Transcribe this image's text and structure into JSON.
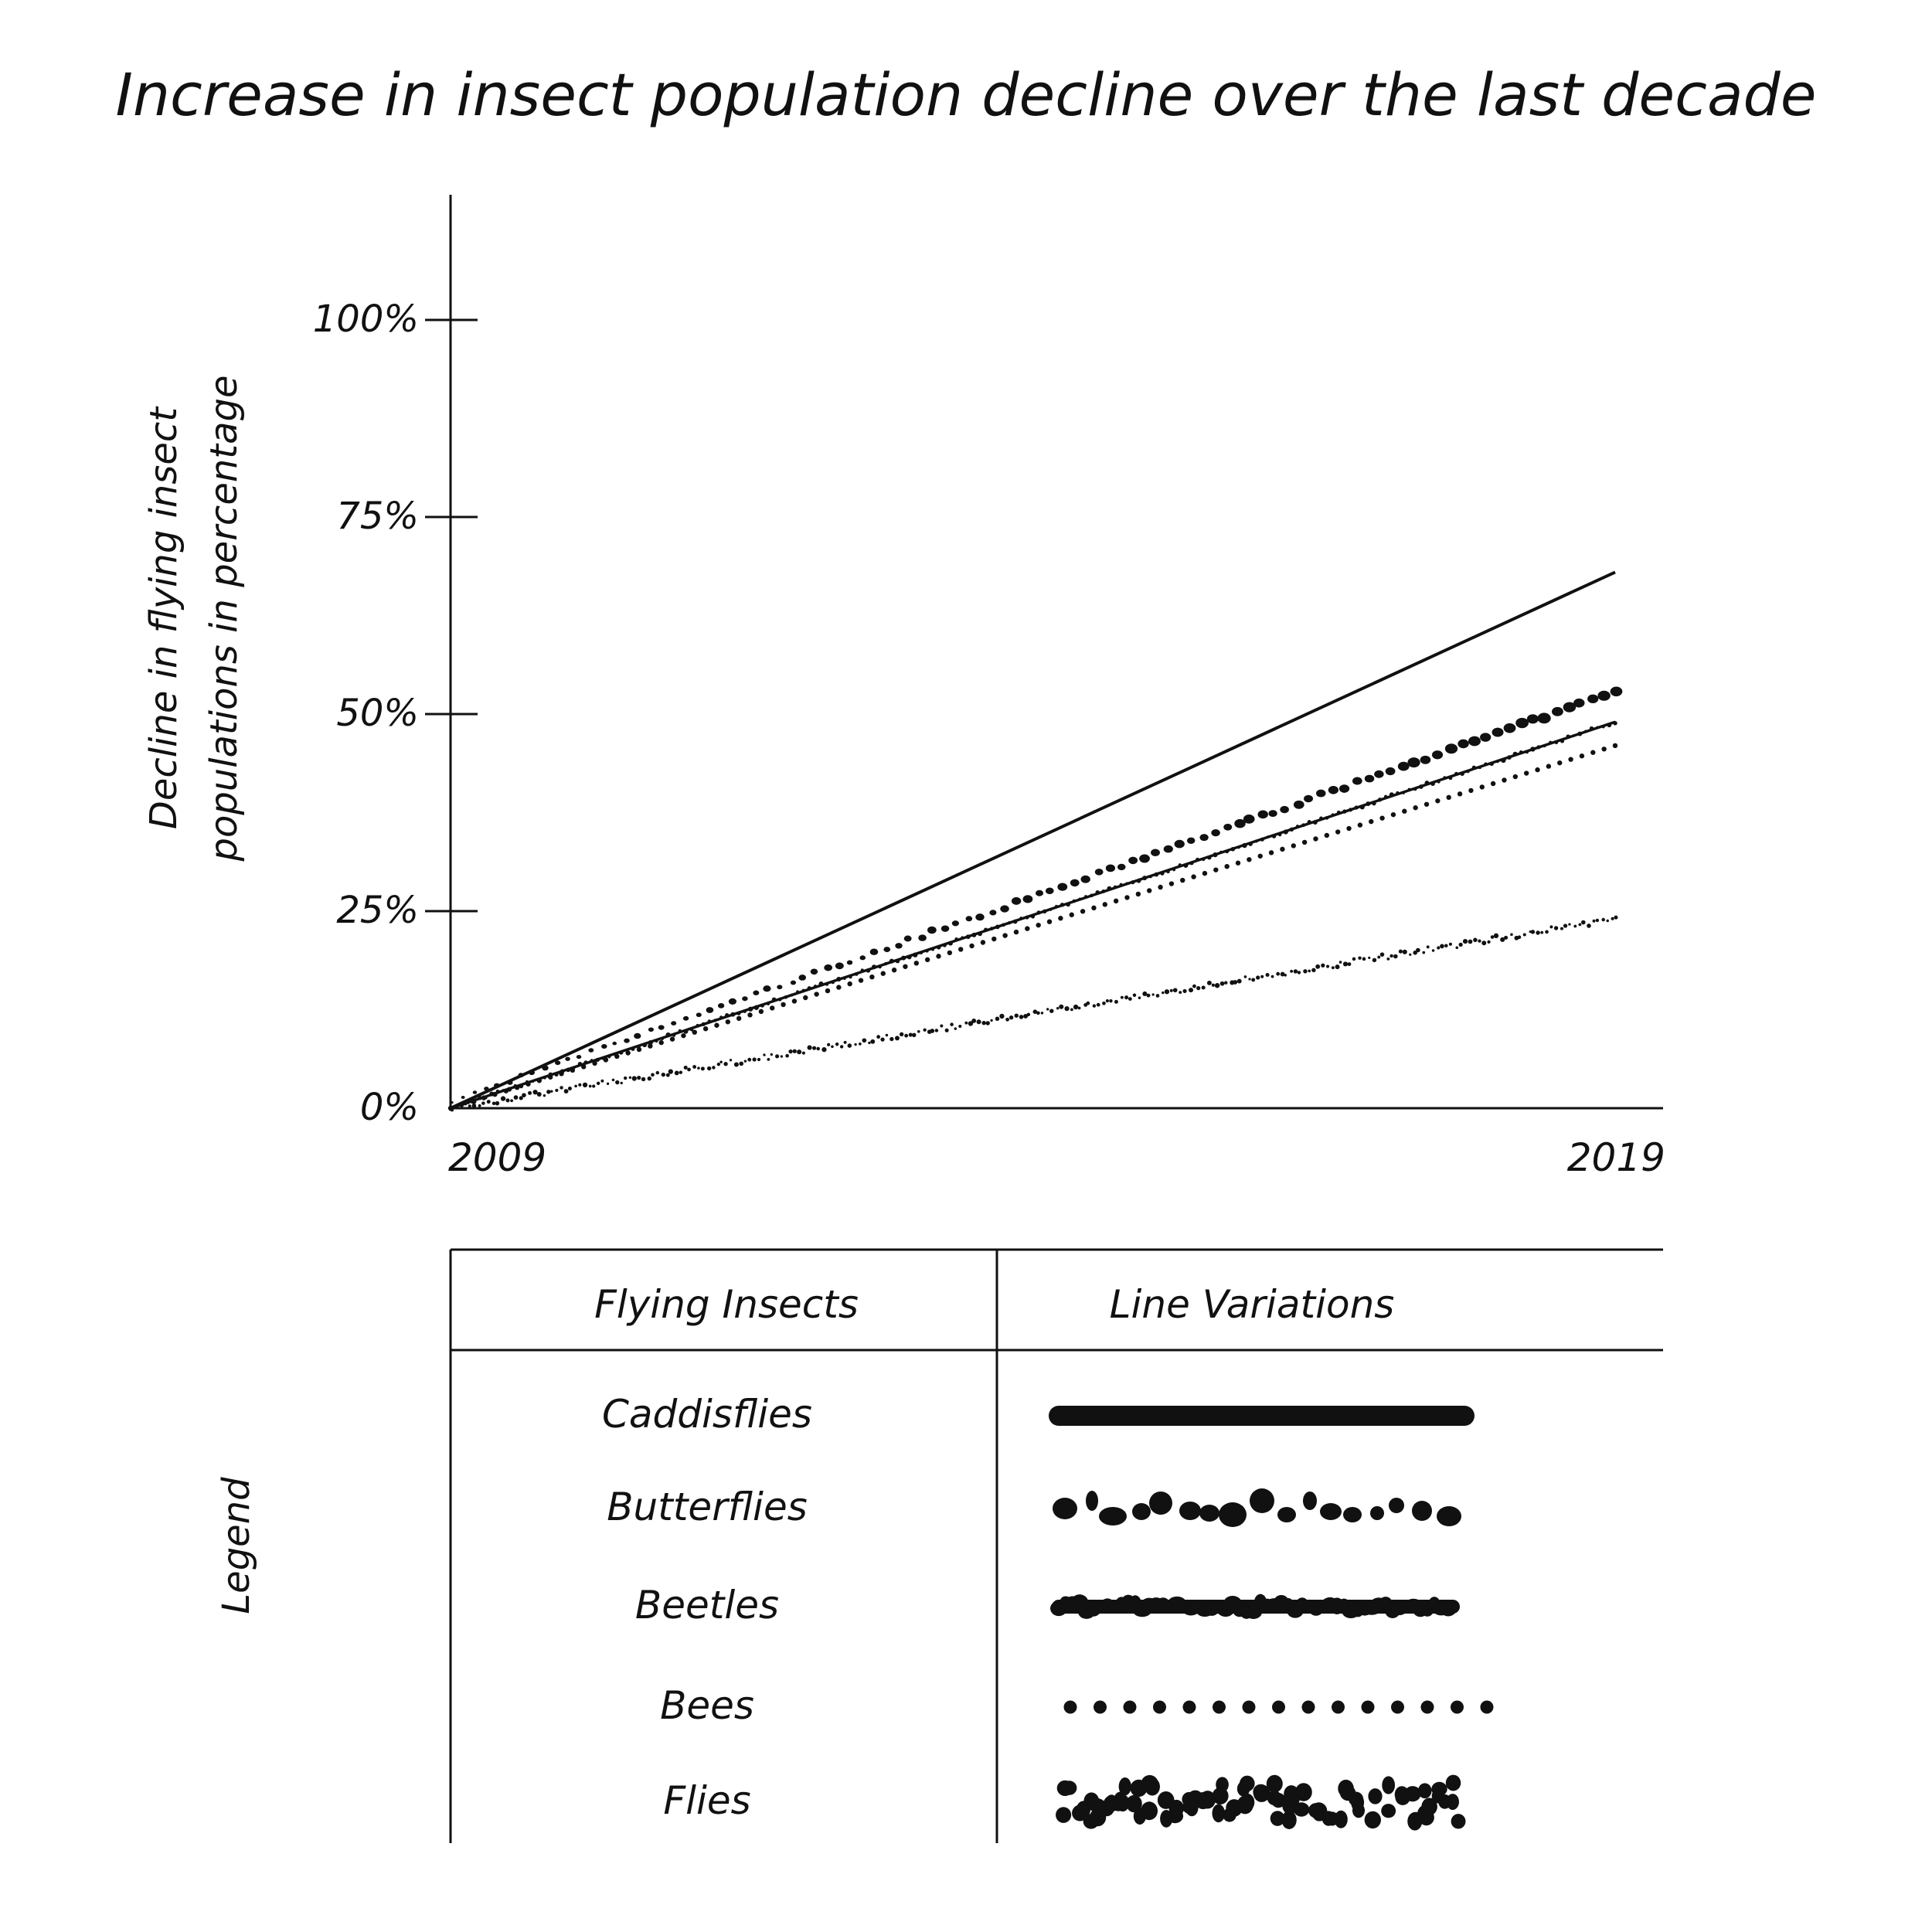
{
  "title": "Increase in insect population decline over the last decade",
  "chart_data": {
    "type": "line",
    "title": "Increase in insect population decline over the last decade",
    "ylabel_lines": [
      "Decline in flying insect",
      "populations in percentage"
    ],
    "xlabel": "",
    "x_ticks": [
      "2009",
      "2019"
    ],
    "y_ticks": [
      "0%",
      "25%",
      "50%",
      "75%",
      "100%"
    ],
    "y_tick_values": [
      0,
      25,
      50,
      75,
      100
    ],
    "xlim": [
      2009,
      2019
    ],
    "ylim": [
      0,
      115
    ],
    "series": [
      {
        "name": "Caddisflies",
        "style": "solid",
        "x": [
          2009,
          2019
        ],
        "values": [
          0,
          68
        ]
      },
      {
        "name": "Butterflies",
        "style": "blobs",
        "x": [
          2009,
          2019
        ],
        "values": [
          0,
          52
        ]
      },
      {
        "name": "Beetles",
        "style": "rough",
        "x": [
          2009,
          2019
        ],
        "values": [
          0,
          49
        ]
      },
      {
        "name": "Bees",
        "style": "dotted",
        "x": [
          2009,
          2019
        ],
        "values": [
          0,
          46
        ]
      },
      {
        "name": "Flies",
        "style": "clustered",
        "x": [
          2009,
          2019
        ],
        "values": [
          0,
          24
        ]
      }
    ],
    "grid": false,
    "legend_position": "bottom"
  },
  "legend": {
    "label": "Legend",
    "header_insects": "Flying Insects",
    "header_lines": "Line Variations",
    "rows": [
      "Caddisflies",
      "Butterflies",
      "Beetles",
      "Bees",
      "Flies"
    ]
  },
  "colors": {
    "ink": "#111111",
    "background": "#ffffff"
  }
}
